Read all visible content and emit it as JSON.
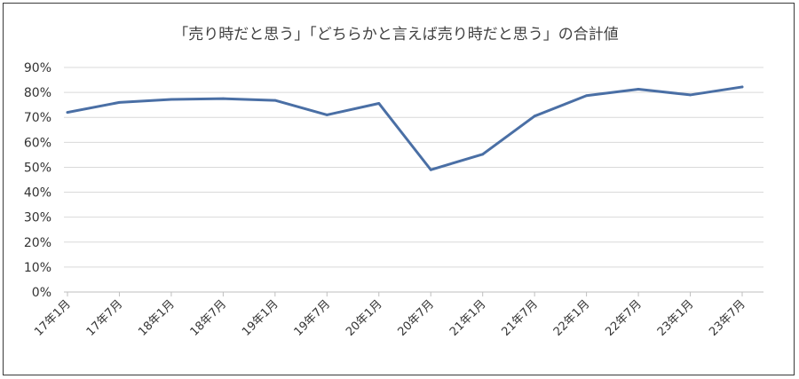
{
  "chart_data": {
    "type": "line",
    "title": "「売り時だと思う」「どちらかと言えば売り時だと思う」の合計値",
    "xlabel": "",
    "ylabel": "",
    "ylim": [
      0,
      90
    ],
    "y_ticks": [
      "0%",
      "10%",
      "20%",
      "30%",
      "40%",
      "50%",
      "60%",
      "70%",
      "80%",
      "90%"
    ],
    "categories": [
      "17年1月",
      "17年7月",
      "18年1月",
      "18年7月",
      "19年1月",
      "19年7月",
      "20年1月",
      "20年7月",
      "21年1月",
      "21年7月",
      "22年1月",
      "22年7月",
      "23年1月",
      "23年7月"
    ],
    "series": [
      {
        "color": "#4a6fa5",
        "values": [
          72,
          76,
          77.2,
          77.5,
          76.8,
          71,
          75.6,
          49,
          55.2,
          70.5,
          78.7,
          81.3,
          79,
          82.2
        ]
      }
    ],
    "grid": true,
    "legend": "none",
    "grid_color": "#d9d9d9",
    "axis_color": "#bfbfbf"
  }
}
